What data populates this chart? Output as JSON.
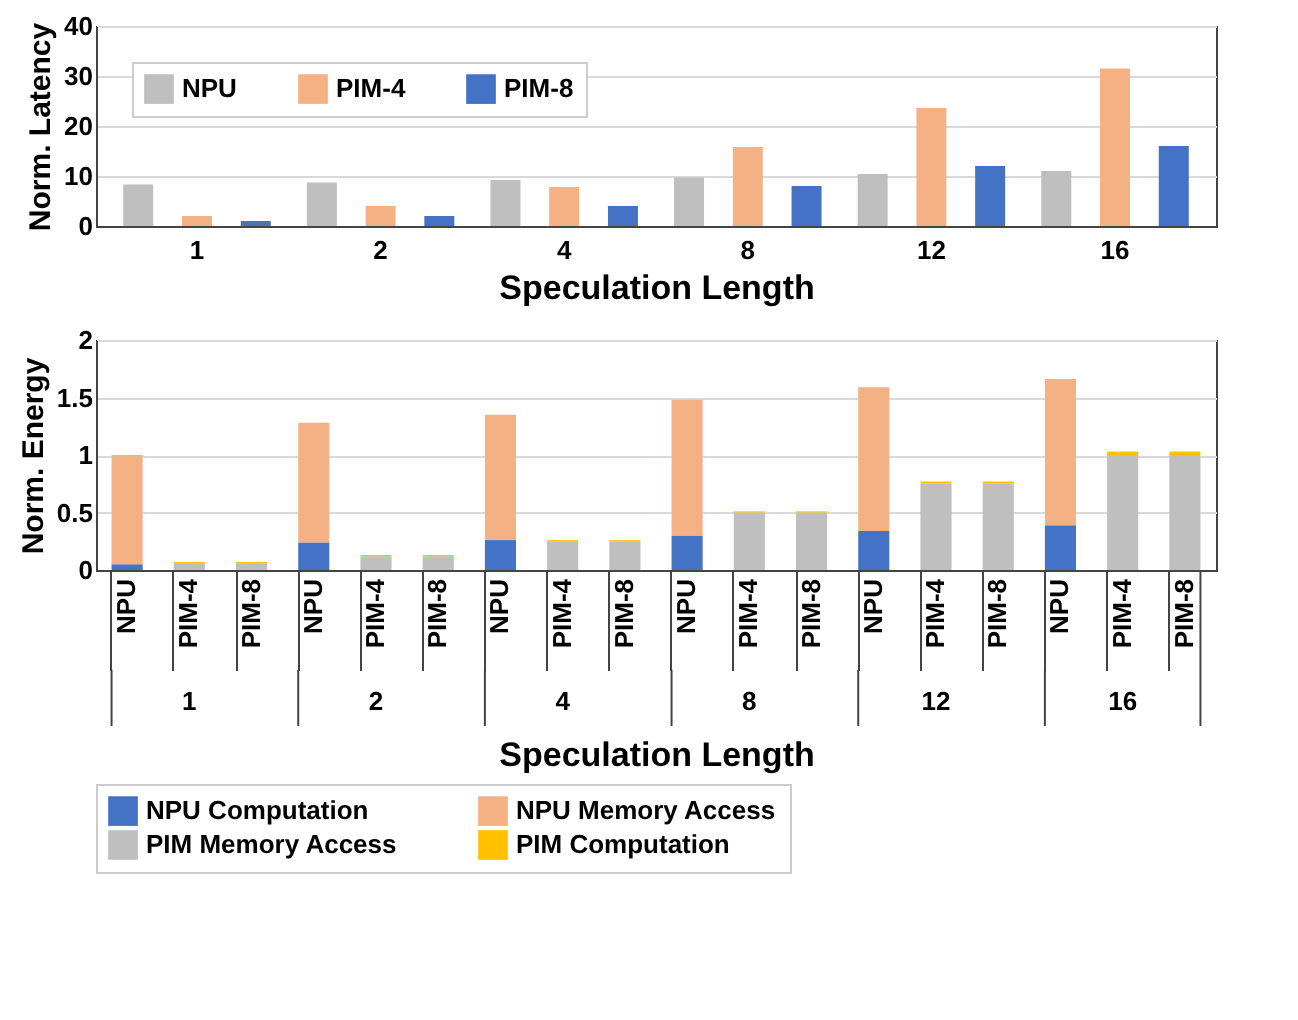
{
  "chart_data": [
    {
      "type": "bar",
      "xlabel": "Speculation Length",
      "ylabel": "Norm. Latency",
      "categories": [
        "1",
        "2",
        "4",
        "8",
        "12",
        "16"
      ],
      "series": [
        {
          "name": "NPU",
          "color": "#bfbfbf",
          "values": [
            8.3,
            8.7,
            9.2,
            9.7,
            10.4,
            11
          ]
        },
        {
          "name": "PIM-4",
          "color": "#f4b183",
          "values": [
            2,
            4,
            7.8,
            15.8,
            23.6,
            31.5
          ]
        },
        {
          "name": "PIM-8",
          "color": "#4472c4",
          "values": [
            1,
            2,
            4,
            8,
            12,
            16
          ]
        }
      ],
      "ylim": [
        0,
        40
      ],
      "yticks": [
        0,
        10,
        20,
        30,
        40
      ],
      "grid": "y",
      "legend": "top left"
    },
    {
      "type": "bar",
      "stacked": true,
      "xlabel": "Speculation Length",
      "ylabel": "Norm. Energy",
      "categories": [
        "NPU",
        "PIM-4",
        "PIM-8",
        "NPU",
        "PIM-4",
        "PIM-8",
        "NPU",
        "PIM-4",
        "PIM-8",
        "NPU",
        "PIM-4",
        "PIM-8",
        "NPU",
        "PIM-4",
        "PIM-8",
        "NPU",
        "PIM-4",
        "PIM-8"
      ],
      "annotations": [
        "1",
        "2",
        "4",
        "8",
        "12",
        "16"
      ],
      "series": [
        {
          "name": "NPU Computation",
          "color": "#4472c4",
          "values": [
            0.05,
            null,
            null,
            0.24,
            null,
            null,
            0.26,
            null,
            null,
            0.3,
            null,
            null,
            0.34,
            null,
            null,
            0.39,
            null,
            null
          ]
        },
        {
          "name": "NPU Memory Access",
          "color": "#f4b183",
          "values": [
            0.95,
            null,
            null,
            1.04,
            null,
            null,
            1.09,
            null,
            null,
            1.18,
            null,
            null,
            1.25,
            null,
            null,
            1.27,
            null,
            null
          ]
        },
        {
          "name": "PIM Memory Access",
          "color": "#bfbfbf",
          "values": [
            null,
            0.06,
            0.06,
            null,
            0.12,
            0.12,
            null,
            0.25,
            0.25,
            null,
            0.5,
            0.5,
            null,
            0.75,
            0.75,
            null,
            1.0,
            1.0
          ]
        },
        {
          "name": "PIM Computation",
          "color": "#ffc000",
          "values": [
            null,
            0.01,
            0.01,
            null,
            0.01,
            0.01,
            null,
            0.01,
            0.01,
            null,
            0.01,
            0.01,
            null,
            0.02,
            0.02,
            null,
            0.03,
            0.03
          ]
        }
      ],
      "ylim": [
        0,
        2
      ],
      "yticks": [
        0,
        0.5,
        1,
        1.5,
        2
      ],
      "grid": "y",
      "legend": "bottom"
    }
  ]
}
